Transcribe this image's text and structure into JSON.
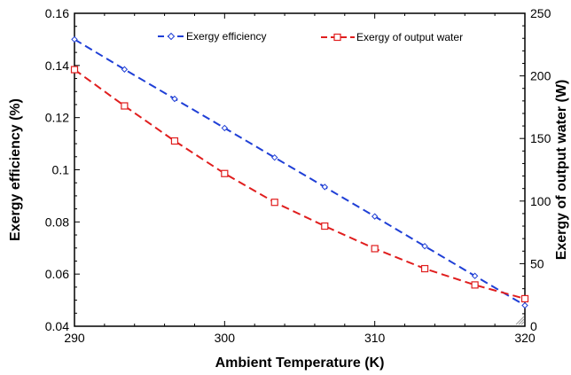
{
  "chart_data": {
    "type": "line",
    "xlabel": "Ambient Temperature (K)",
    "ylabel_left": "Exergy efficiency (%)",
    "ylabel_right": "Exergy of output water  (W)",
    "xlim": [
      290,
      320
    ],
    "ylim_left": [
      0.04,
      0.16
    ],
    "ylim_right": [
      0,
      250
    ],
    "x_ticks": [
      "290",
      "300",
      "310",
      "320"
    ],
    "y_left_ticks": [
      "0.04",
      "0.06",
      "0.08",
      "0.1",
      "0.12",
      "0.14",
      "0.16"
    ],
    "y_right_ticks": [
      "0",
      "50",
      "100",
      "150",
      "200",
      "250"
    ],
    "grid": false,
    "legend_position": "top",
    "series": [
      {
        "name": "Exergy efficiency",
        "axis": "left",
        "color": "#1f3fd6",
        "marker": "diamond",
        "x": [
          290,
          293.33,
          296.67,
          300,
          303.33,
          306.67,
          310,
          313.33,
          316.67,
          320
        ],
        "y": [
          0.15,
          0.1385,
          0.1272,
          0.116,
          0.1047,
          0.0934,
          0.0821,
          0.0707,
          0.0593,
          0.048
        ]
      },
      {
        "name": "Exergy of output water",
        "axis": "right",
        "color": "#e01e1e",
        "marker": "square",
        "x": [
          290,
          293.33,
          296.67,
          300,
          303.33,
          306.67,
          310,
          313.33,
          316.67,
          320
        ],
        "y": [
          205,
          176,
          148,
          122,
          99,
          80,
          62,
          46,
          33,
          22
        ]
      }
    ]
  }
}
